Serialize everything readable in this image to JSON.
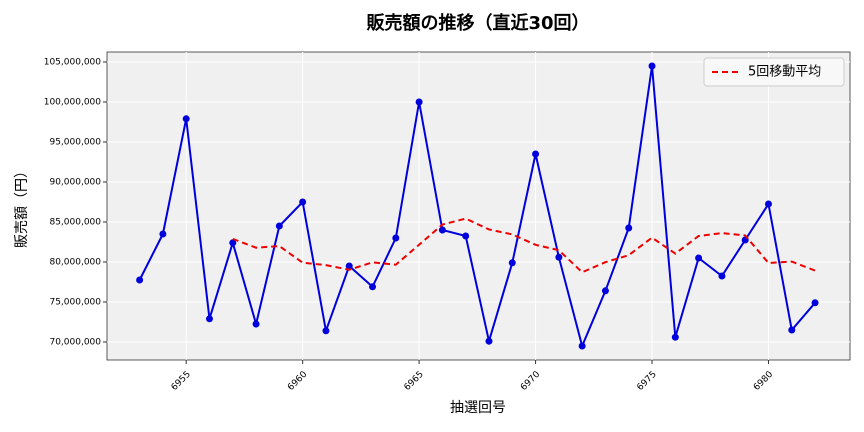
{
  "chart_data": {
    "type": "line",
    "title": "販売額の推移（直近30回）",
    "x_label": "抽選回号",
    "y_label": "販売額（円）",
    "x": [
      6953,
      6954,
      6955,
      6956,
      6957,
      6958,
      6959,
      6960,
      6961,
      6962,
      6963,
      6964,
      6965,
      6966,
      6967,
      6968,
      6969,
      6970,
      6971,
      6972,
      6973,
      6974,
      6975,
      6976,
      6977,
      6978,
      6979,
      6980,
      6981,
      6982
    ],
    "series": [
      {
        "name": "販売額",
        "color": "#0000dd",
        "style": "solid",
        "marker": true,
        "values": [
          77750000,
          83500000,
          97900000,
          72900000,
          82400000,
          72250000,
          84500000,
          87500000,
          71400000,
          79500000,
          76900000,
          83000000,
          100000000,
          84000000,
          83250000,
          70100000,
          79900000,
          93500000,
          80600000,
          69500000,
          76400000,
          84250000,
          104500000,
          70600000,
          80500000,
          78250000,
          82750000,
          87250000,
          71500000,
          74900000
        ]
      },
      {
        "name": "5回移動平均",
        "color": "#ee0000",
        "style": "dashed",
        "marker": false,
        "values": [
          null,
          null,
          null,
          null,
          82890000,
          81790000,
          81990000,
          79910000,
          79610000,
          79030000,
          79960000,
          79660000,
          82160000,
          84680000,
          85430000,
          84070000,
          83450000,
          82150000,
          81470000,
          78720000,
          79980000,
          80850000,
          83050000,
          81050000,
          83250000,
          83620000,
          83320000,
          79870000,
          80050000,
          78930000
        ]
      }
    ],
    "xlim": [
      6951.6,
      6983.5
    ],
    "xticks": [
      6955,
      6960,
      6965,
      6970,
      6975,
      6980
    ],
    "ylim": [
      67750000,
      106250000
    ],
    "yticks": [
      {
        "value": 70000000,
        "label": "70,000,000"
      },
      {
        "value": 75000000,
        "label": "75,000,000"
      },
      {
        "value": 80000000,
        "label": "80,000,000"
      },
      {
        "value": 85000000,
        "label": "85,000,000"
      },
      {
        "value": 90000000,
        "label": "90,000,000"
      },
      {
        "value": 95000000,
        "label": "95,000,000"
      },
      {
        "value": 100000000,
        "label": "100,000,000"
      },
      {
        "value": 105000000,
        "label": "105,000,000"
      }
    ],
    "grid": true,
    "legend": "upper-right"
  }
}
